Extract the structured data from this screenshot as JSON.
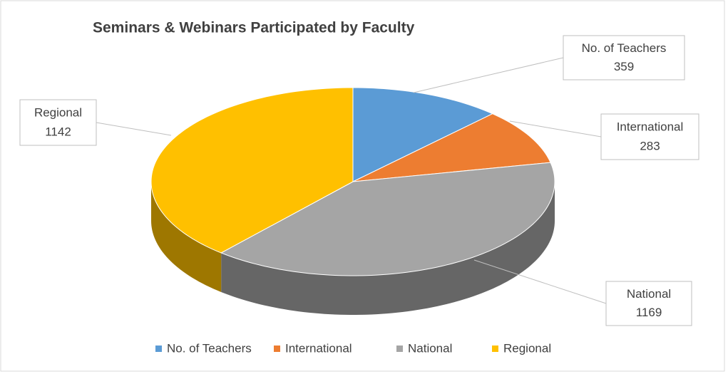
{
  "chart_data": {
    "type": "pie",
    "title": "Seminars & Webinars Participated by Faculty",
    "categories": [
      "No. of Teachers",
      "International",
      "National",
      "Regional"
    ],
    "values": [
      359,
      283,
      1169,
      1142
    ],
    "colors": [
      "#5b9bd5",
      "#ed7d31",
      "#a5a5a5",
      "#ffc000"
    ]
  }
}
